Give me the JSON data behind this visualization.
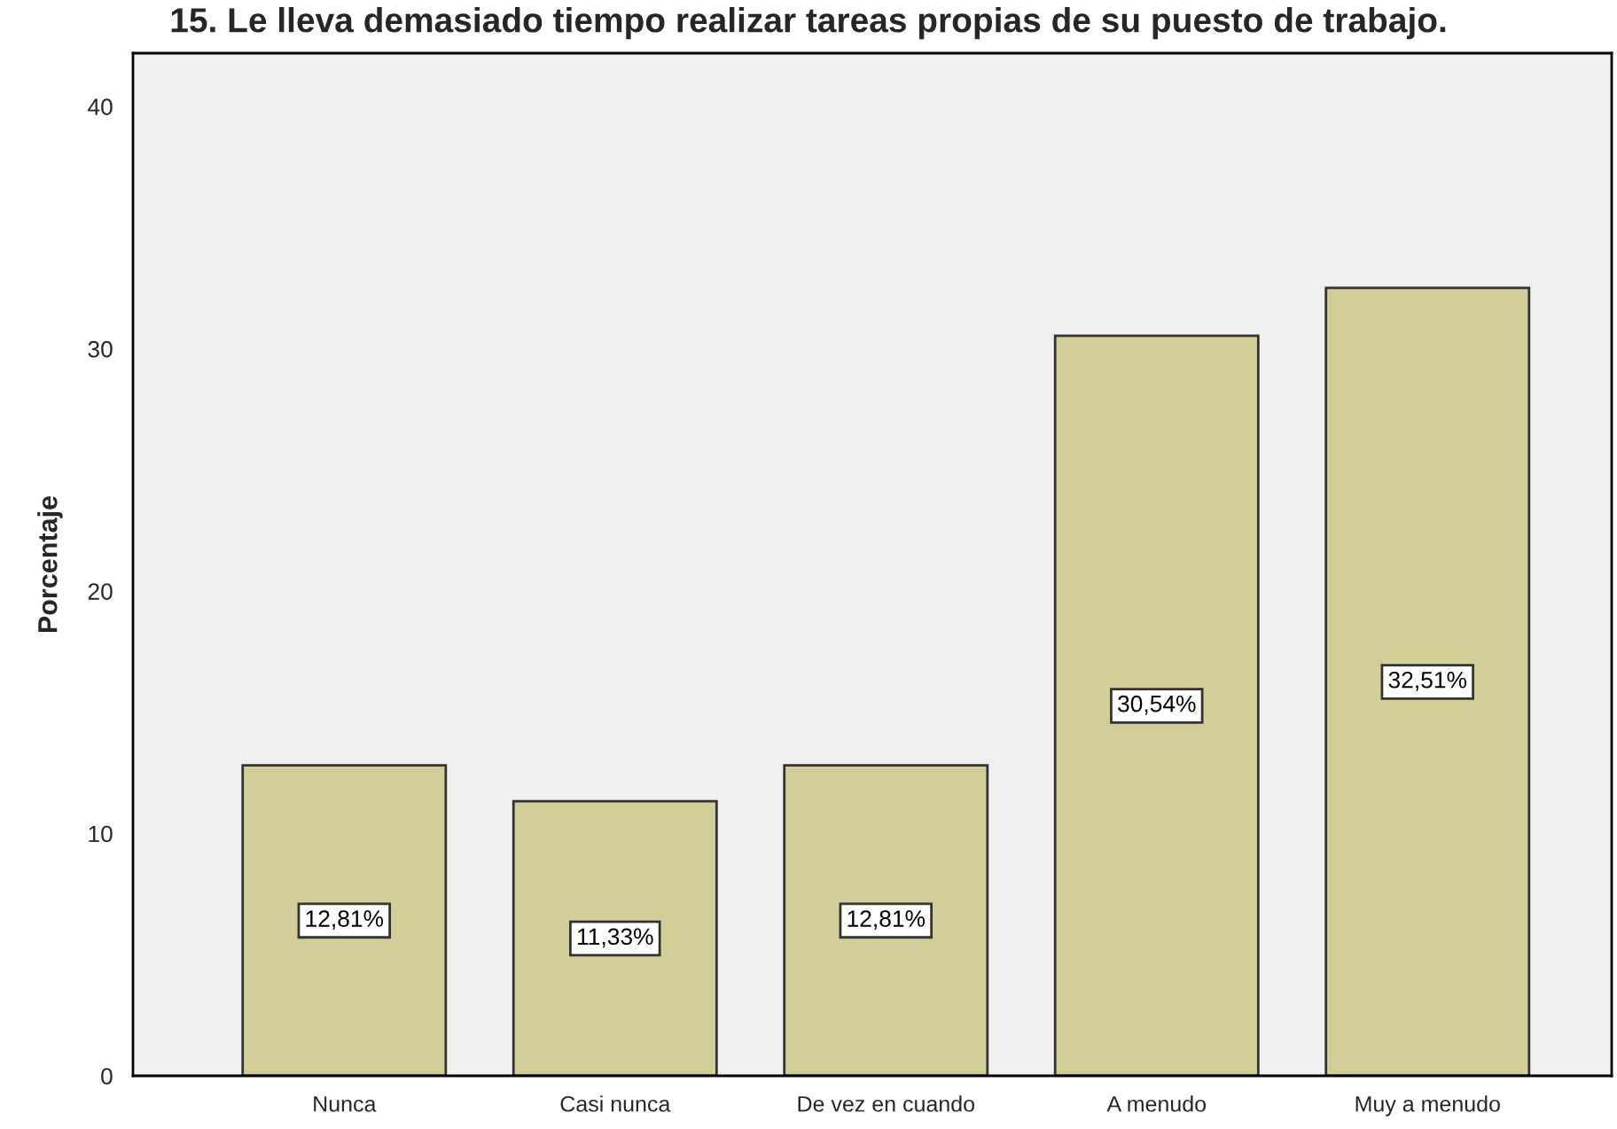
{
  "chart_data": {
    "type": "bar",
    "title": "15. Le lleva demasiado tiempo realizar tareas propias de su puesto de trabajo.",
    "ylabel": "Porcentaje",
    "categories": [
      "Nunca",
      "Casi nunca",
      "De vez en cuando",
      "A menudo",
      "Muy a menudo"
    ],
    "values": [
      12.81,
      11.33,
      12.81,
      30.54,
      32.51
    ],
    "value_labels": [
      "12,81%",
      "11,33%",
      "12,81%",
      "30,54%",
      "32,51%"
    ],
    "color": "#d3ce98",
    "ylim": [
      0,
      42.2
    ],
    "yticks": [
      0,
      10,
      20,
      30,
      40
    ]
  }
}
